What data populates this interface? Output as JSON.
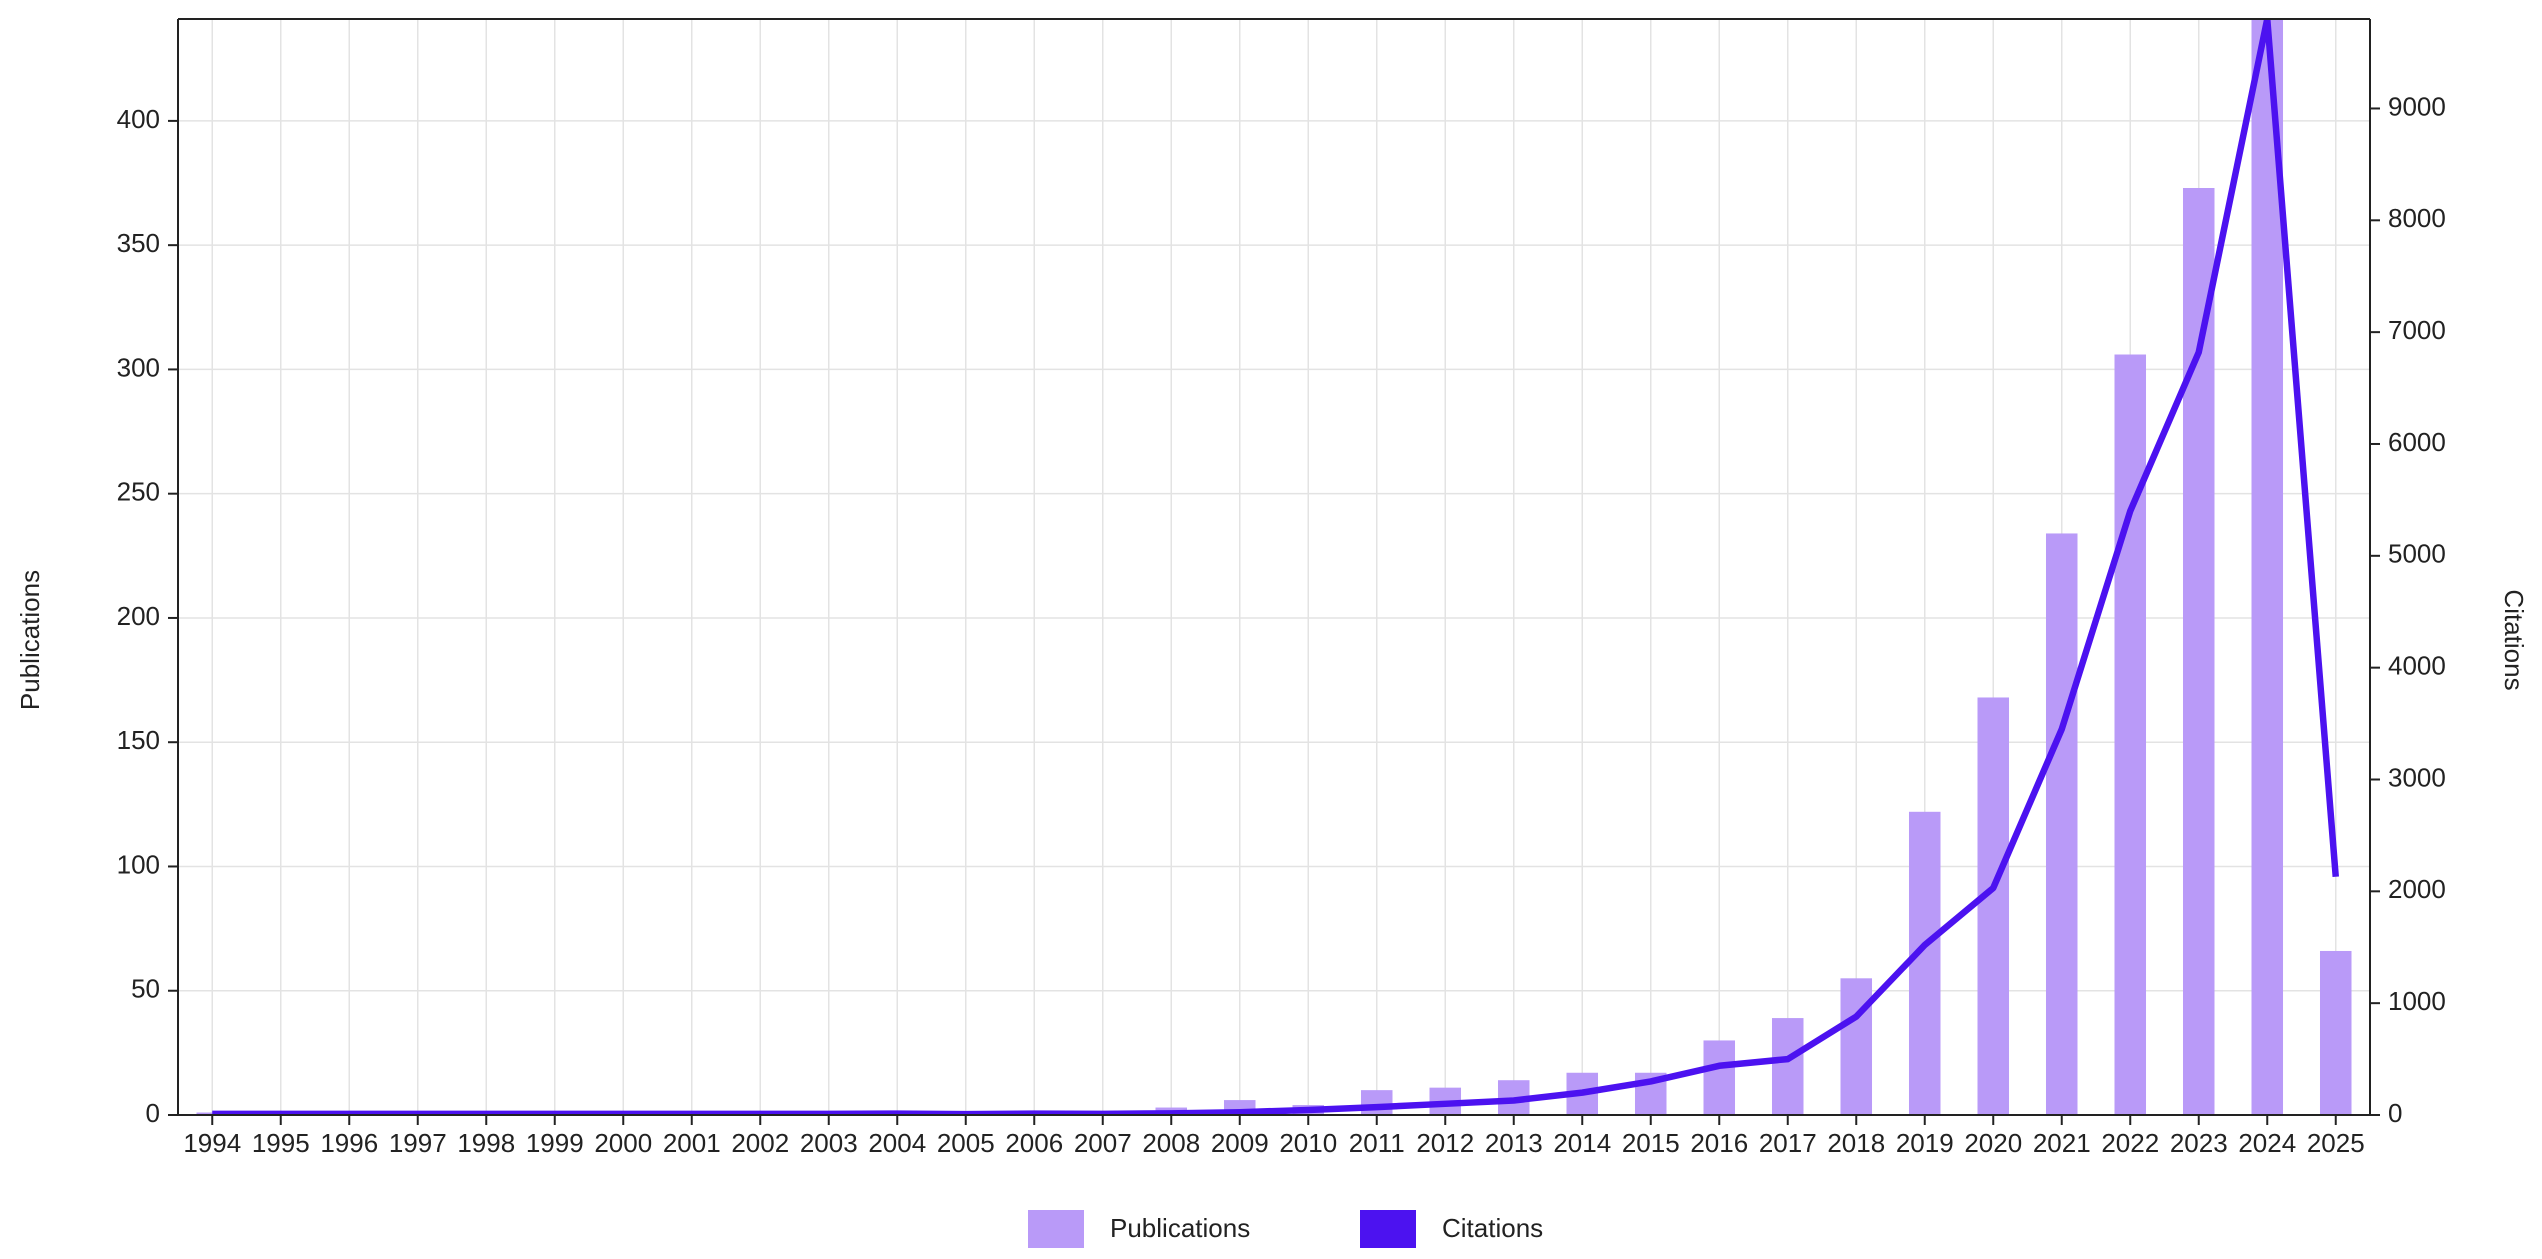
{
  "chart_data": {
    "type": "bar-line",
    "categories": [
      "1994",
      "1995",
      "1996",
      "1997",
      "1998",
      "1999",
      "2000",
      "2001",
      "2002",
      "2003",
      "2004",
      "2005",
      "2006",
      "2007",
      "2008",
      "2009",
      "2010",
      "2011",
      "2012",
      "2013",
      "2014",
      "2015",
      "2016",
      "2017",
      "2018",
      "2019",
      "2020",
      "2021",
      "2022",
      "2023",
      "2024",
      "2025"
    ],
    "y_label": "Publications",
    "y2_label": "Citations",
    "ylim": [
      0,
      441
    ],
    "yticks": [
      0,
      50,
      100,
      150,
      200,
      250,
      300,
      350,
      400
    ],
    "y2lim": [
      0,
      9800
    ],
    "y2ticks": [
      0,
      1000,
      2000,
      3000,
      4000,
      5000,
      6000,
      7000,
      8000,
      9000
    ],
    "grid": true,
    "series": [
      {
        "name": "Publications",
        "type": "bar",
        "color": "#b99af8",
        "values": [
          1,
          0,
          0,
          0,
          0,
          0,
          0,
          0,
          0,
          0,
          0,
          0,
          0,
          0,
          3,
          6,
          4,
          10,
          11,
          14,
          17,
          17,
          30,
          39,
          55,
          122,
          168,
          234,
          306,
          373,
          445,
          66
        ]
      },
      {
        "name": "Citations",
        "type": "line",
        "axis": "y2",
        "color": "#4c12f0",
        "values": [
          10,
          10,
          10,
          10,
          10,
          10,
          10,
          10,
          10,
          10,
          12,
          8,
          12,
          10,
          15,
          25,
          45,
          70,
          100,
          130,
          200,
          300,
          440,
          500,
          880,
          1520,
          2030,
          3450,
          5400,
          6820,
          9800,
          2130
        ]
      }
    ]
  }
}
